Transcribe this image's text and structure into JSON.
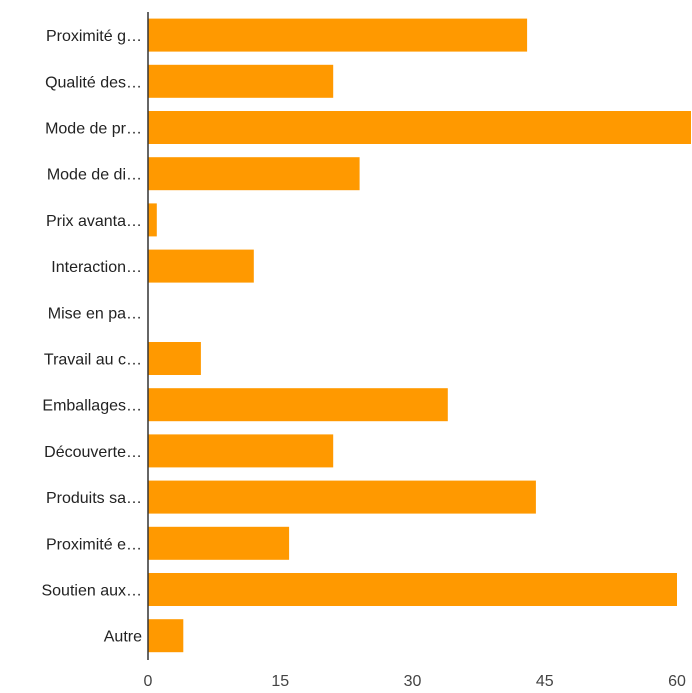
{
  "chart_data": {
    "type": "bar",
    "orientation": "horizontal",
    "categories": [
      "Proximité g…",
      "Qualité des…",
      "Mode de pr…",
      "Mode de di…",
      "Prix avanta…",
      "Interaction…",
      "Mise en pa…",
      "Travail au c…",
      "Emballages…",
      "Découverte…",
      "Produits sa…",
      "Proximité e…",
      "Soutien aux…",
      "Autre"
    ],
    "values": [
      43,
      21,
      62,
      24,
      1,
      12,
      0,
      6,
      34,
      21,
      44,
      16,
      60,
      4
    ],
    "xlim": [
      0,
      60
    ],
    "xticks": [
      0,
      15,
      30,
      45,
      60
    ],
    "xtick_labels": [
      "0",
      "15",
      "30",
      "45",
      "60"
    ],
    "title": "",
    "xlabel": "",
    "ylabel": "",
    "grid": false,
    "legend": "none",
    "colors": {
      "bar": "#ff9900",
      "axis": "#333333",
      "text": "#222222"
    }
  }
}
